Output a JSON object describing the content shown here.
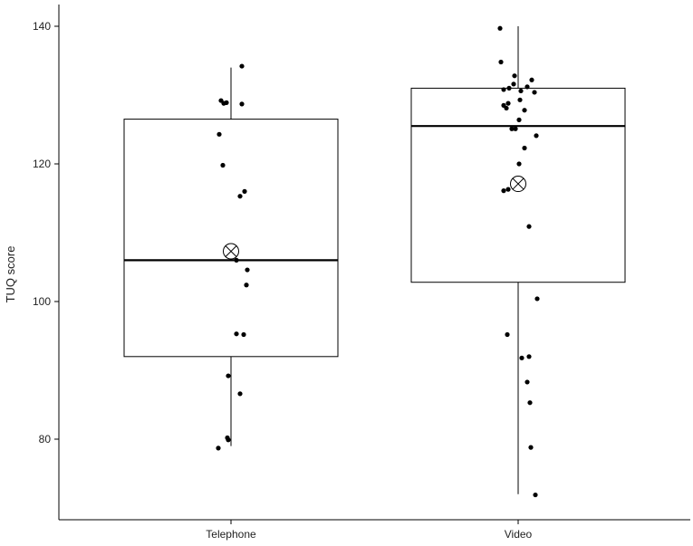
{
  "chart_data": {
    "type": "box",
    "title": "",
    "xlabel": "",
    "ylabel": "TUQ score",
    "ylim": [
      68,
      142
    ],
    "yticks": [
      80,
      100,
      120,
      140
    ],
    "grid": false,
    "categories": [
      "Telephone",
      "Video"
    ],
    "boxes": [
      {
        "category": "Telephone",
        "whisker_low": 79,
        "q1": 92,
        "median": 106,
        "q3": 126.5,
        "whisker_high": 134,
        "mean": 107.3,
        "points": [
          134.2,
          129.2,
          128.9,
          128.8,
          128.7,
          124.3,
          119.8,
          116,
          115.3,
          106,
          104.6,
          102.4,
          95.3,
          95.2,
          89.2,
          86.6,
          80.2,
          79.9,
          78.7
        ]
      },
      {
        "category": "Video",
        "whisker_low": 72,
        "q1": 102.8,
        "median": 125.5,
        "q3": 131,
        "whisker_high": 140,
        "mean": 117.1,
        "points": [
          139.7,
          134.8,
          132.8,
          132.2,
          131.6,
          131.2,
          131,
          130.8,
          130.6,
          130.4,
          129.3,
          128.8,
          128.5,
          128.1,
          127.8,
          126.4,
          125.1,
          125.1,
          124.1,
          122.3,
          120,
          116.3,
          116.1,
          110.9,
          100.4,
          95.2,
          92,
          91.8,
          88.3,
          85.3,
          78.8,
          71.9
        ]
      }
    ]
  }
}
